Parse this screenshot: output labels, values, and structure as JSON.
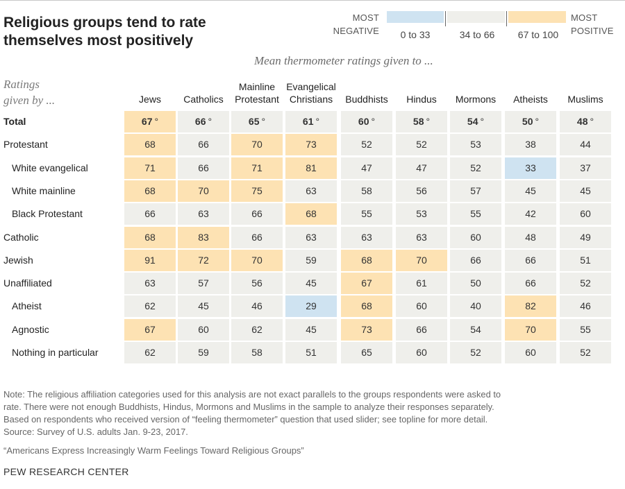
{
  "title_lines": [
    "Religious groups tend to rate",
    "themselves most positively"
  ],
  "legend": {
    "negative_label_lines": [
      "MOST",
      "NEGATIVE"
    ],
    "positive_label_lines": [
      "MOST",
      "POSITIVE"
    ],
    "ranges": [
      {
        "label": "0 to 33",
        "color": "#cfe3f1"
      },
      {
        "label": "34 to 66",
        "color": "#efefeb"
      },
      {
        "label": "67 to 100",
        "color": "#fde2b3"
      }
    ],
    "tick_color": "#666666"
  },
  "subtitle": "Mean thermometer ratings given to ...",
  "row_header_lines": [
    "Ratings",
    "given by ..."
  ],
  "colors": {
    "low": "#cfe3f1",
    "mid": "#efefeb",
    "high": "#fde2b3",
    "text": "#333333"
  },
  "chart_data": {
    "type": "table",
    "title": "Religious groups tend to rate themselves most positively",
    "column_labels": [
      [
        "Jews"
      ],
      [
        "Catholics"
      ],
      [
        "Mainline",
        "Protestant"
      ],
      [
        "Evangelical",
        "Christians"
      ],
      [
        "Buddhists"
      ],
      [
        "Hindus"
      ],
      [
        "Mormons"
      ],
      [
        "Atheists"
      ],
      [
        "Muslims"
      ]
    ],
    "rows": [
      {
        "label": "Total",
        "indent": false,
        "bold": true,
        "values": [
          67,
          66,
          65,
          61,
          60,
          58,
          54,
          50,
          48
        ],
        "suffix": "°"
      },
      {
        "label": "Protestant",
        "indent": false,
        "bold": false,
        "values": [
          68,
          66,
          70,
          73,
          52,
          52,
          53,
          38,
          44
        ]
      },
      {
        "label": "White evangelical",
        "indent": true,
        "bold": false,
        "values": [
          71,
          66,
          71,
          81,
          47,
          47,
          52,
          33,
          37
        ]
      },
      {
        "label": "White mainline",
        "indent": true,
        "bold": false,
        "values": [
          68,
          70,
          75,
          63,
          58,
          56,
          57,
          45,
          45
        ]
      },
      {
        "label": "Black Protestant",
        "indent": true,
        "bold": false,
        "values": [
          66,
          63,
          66,
          68,
          55,
          53,
          55,
          42,
          60
        ]
      },
      {
        "label": "Catholic",
        "indent": false,
        "bold": false,
        "values": [
          68,
          83,
          66,
          63,
          63,
          63,
          60,
          48,
          49
        ]
      },
      {
        "label": "Jewish",
        "indent": false,
        "bold": false,
        "values": [
          91,
          72,
          70,
          59,
          68,
          70,
          66,
          66,
          51
        ]
      },
      {
        "label": "Unaffiliated",
        "indent": false,
        "bold": false,
        "values": [
          63,
          57,
          56,
          45,
          67,
          61,
          50,
          66,
          52
        ]
      },
      {
        "label": "Atheist",
        "indent": true,
        "bold": false,
        "values": [
          62,
          45,
          46,
          29,
          68,
          60,
          40,
          82,
          46
        ]
      },
      {
        "label": "Agnostic",
        "indent": true,
        "bold": false,
        "values": [
          67,
          60,
          62,
          45,
          73,
          66,
          54,
          70,
          55
        ]
      },
      {
        "label": "Nothing in particular",
        "indent": true,
        "bold": false,
        "values": [
          62,
          59,
          58,
          51,
          65,
          60,
          52,
          60,
          52
        ]
      }
    ],
    "color_scale": [
      {
        "min": 0,
        "max": 33,
        "label": "0 to 33"
      },
      {
        "min": 34,
        "max": 66,
        "label": "34 to 66"
      },
      {
        "min": 67,
        "max": 100,
        "label": "67 to 100"
      }
    ]
  },
  "note_lines": [
    "Note: The religious affiliation categories used for this analysis are not exact parallels to the groups respondents were asked to",
    "rate. There were not enough Buddhists, Hindus, Mormons and Muslims in the sample to analyze their responses separately.",
    "Based on respondents who received version of “feeling thermometer” question that used slider; see topline for more detail.",
    "Source: Survey of U.S. adults Jan. 9-23, 2017."
  ],
  "report_title": "“Americans Express Increasingly Warm Feelings Toward Religious Groups”",
  "footer": "PEW RESEARCH CENTER"
}
